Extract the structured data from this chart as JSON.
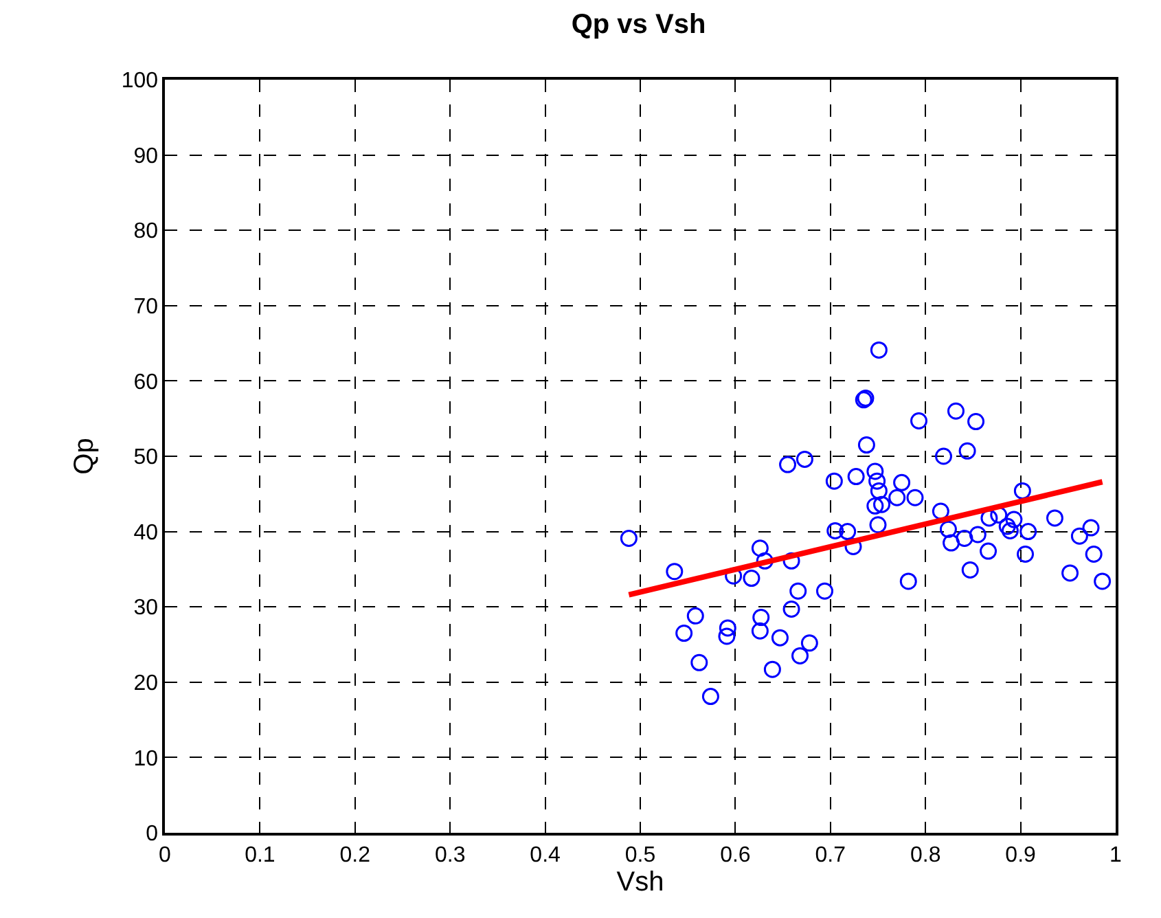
{
  "chart_data": {
    "type": "scatter",
    "title": "Qp vs Vsh",
    "xlabel": "Vsh",
    "ylabel": "Qp",
    "xlim": [
      0,
      1
    ],
    "xticks": [
      0,
      0.1,
      0.2,
      0.3,
      0.4,
      0.5,
      0.6,
      0.7,
      0.8,
      0.9,
      1
    ],
    "ylim": [
      0,
      100
    ],
    "yticks": [
      0,
      10,
      20,
      30,
      40,
      50,
      60,
      70,
      80,
      90,
      100
    ],
    "grid": true,
    "series": [
      {
        "color": "#0000ff",
        "marker": "circle",
        "x": [
          0.488,
          0.536,
          0.558,
          0.546,
          0.562,
          0.574,
          0.592,
          0.591,
          0.598,
          0.617,
          0.626,
          0.631,
          0.627,
          0.626,
          0.639,
          0.647,
          0.655,
          0.673,
          0.659,
          0.659,
          0.666,
          0.678,
          0.668,
          0.694,
          0.704,
          0.705,
          0.718,
          0.724,
          0.727,
          0.738,
          0.737,
          0.735,
          0.751,
          0.793,
          0.832,
          0.853,
          0.819,
          0.844,
          0.747,
          0.749,
          0.751,
          0.747,
          0.754,
          0.775,
          0.77,
          0.789,
          0.75,
          0.782,
          0.816,
          0.824,
          0.827,
          0.841,
          0.847,
          0.855,
          0.866,
          0.867,
          0.877,
          0.886,
          0.893,
          0.889,
          0.902,
          0.908,
          0.905,
          0.936,
          0.952,
          0.962,
          0.974,
          0.977,
          0.986
        ],
        "values": [
          39.1,
          34.7,
          28.8,
          26.5,
          22.6,
          18.1,
          27.2,
          26.1,
          34.1,
          33.8,
          37.8,
          36.1,
          28.6,
          26.8,
          21.7,
          25.9,
          48.9,
          49.6,
          36.1,
          29.7,
          32.1,
          25.2,
          23.5,
          32.1,
          46.7,
          40.1,
          40.0,
          38.0,
          47.3,
          51.5,
          57.7,
          57.5,
          64.1,
          54.7,
          56.0,
          54.6,
          50.0,
          50.7,
          48.0,
          46.7,
          45.4,
          43.4,
          43.6,
          46.5,
          44.5,
          44.5,
          40.9,
          33.4,
          42.7,
          40.3,
          38.5,
          39.1,
          34.9,
          39.6,
          37.4,
          41.8,
          42.2,
          40.7,
          41.6,
          40.1,
          45.4,
          40.0,
          37.0,
          41.8,
          34.5,
          39.4,
          40.5,
          37.0,
          33.4
        ]
      },
      {
        "type": "line",
        "color": "#ff0000",
        "marker": "none",
        "line_style": "solid",
        "x": [
          0.488,
          0.986
        ],
        "values": [
          31.6,
          46.6
        ]
      }
    ]
  }
}
